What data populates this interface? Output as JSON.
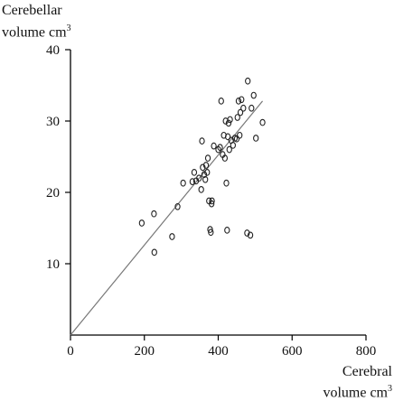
{
  "chart_data": {
    "type": "scatter",
    "ylabel": {
      "line1": "Cerebellar",
      "line2": "volume cm",
      "sup": "3"
    },
    "xlabel": {
      "line1": "Cerebral",
      "line2": "volume cm",
      "sup": "3"
    },
    "xlim": [
      0,
      800
    ],
    "ylim": [
      0,
      40
    ],
    "xticks": [
      0,
      200,
      400,
      600,
      800
    ],
    "yticks": [
      10,
      20,
      30,
      40
    ],
    "grid": false,
    "points": [
      [
        193,
        15.7
      ],
      [
        226,
        17.0
      ],
      [
        227,
        11.6
      ],
      [
        275,
        13.8
      ],
      [
        290,
        18.0
      ],
      [
        305,
        21.3
      ],
      [
        330,
        21.5
      ],
      [
        335,
        22.8
      ],
      [
        340,
        21.6
      ],
      [
        348,
        22.0
      ],
      [
        354,
        20.4
      ],
      [
        356,
        27.2
      ],
      [
        358,
        23.5
      ],
      [
        362,
        22.5
      ],
      [
        365,
        21.8
      ],
      [
        367,
        23.8
      ],
      [
        370,
        22.8
      ],
      [
        372,
        24.8
      ],
      [
        375,
        18.8
      ],
      [
        378,
        14.8
      ],
      [
        380,
        14.4
      ],
      [
        382,
        18.4
      ],
      [
        383,
        18.8
      ],
      [
        388,
        26.5
      ],
      [
        400,
        26.0
      ],
      [
        405,
        26.3
      ],
      [
        408,
        32.8
      ],
      [
        412,
        25.3
      ],
      [
        415,
        28.0
      ],
      [
        418,
        24.8
      ],
      [
        420,
        30.0
      ],
      [
        422,
        21.3
      ],
      [
        424,
        14.7
      ],
      [
        426,
        27.8
      ],
      [
        428,
        29.7
      ],
      [
        430,
        26.0
      ],
      [
        432,
        30.2
      ],
      [
        435,
        27.3
      ],
      [
        440,
        26.6
      ],
      [
        445,
        27.6
      ],
      [
        450,
        27.5
      ],
      [
        452,
        30.5
      ],
      [
        455,
        32.8
      ],
      [
        458,
        28.0
      ],
      [
        460,
        31.2
      ],
      [
        463,
        33.0
      ],
      [
        468,
        31.8
      ],
      [
        478,
        14.3
      ],
      [
        480,
        35.6
      ],
      [
        487,
        14.0
      ],
      [
        490,
        31.8
      ],
      [
        496,
        33.6
      ],
      [
        502,
        27.6
      ],
      [
        520,
        29.8
      ]
    ],
    "trendline": {
      "x": [
        0,
        520
      ],
      "y": [
        0,
        32.8
      ]
    }
  }
}
